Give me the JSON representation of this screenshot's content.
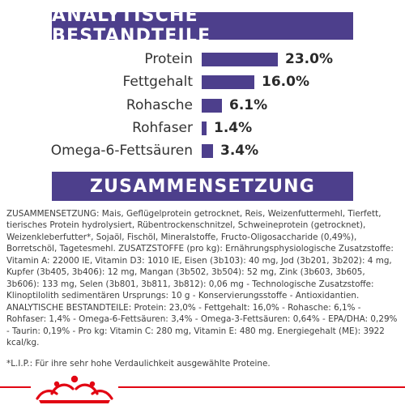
{
  "section1": {
    "title": "ANALYTISCHE BESTANDTEILE"
  },
  "nutrients": [
    {
      "label": "Protein",
      "value_text": "23.0%",
      "value": 23.0
    },
    {
      "label": "Fettgehalt",
      "value_text": "16.0%",
      "value": 16.0
    },
    {
      "label": "Rohasche",
      "value_text": "6.1%",
      "value": 6.1
    },
    {
      "label": "Rohfaser",
      "value_text": "1.4%",
      "value": 1.4
    },
    {
      "label": "Omega-6-Fettsäuren",
      "value_text": "3.4%",
      "value": 3.4
    }
  ],
  "section2": {
    "title": "ZUSAMMENSETZUNG"
  },
  "composition_text": "ZUSAMMENSETZUNG: Mais, Geflügelprotein getrocknet, Reis, Weizenfuttermehl, Tierfett, tierisches Protein hydrolysiert, Rübentrockenschnitzel, Schweineprotein (getrocknet), Weizenkleberfutter*, Sojaöl, Fischöl, Mineralstoffe, Fructo-Oligosaccharide (0,49%), Borretschöl, Tagetesmehl. ZUSATZSTOFFE (pro kg): Ernährungsphysiologische Zusatzstoffe: Vitamin A: 22000 IE, Vitamin D3: 1010 IE, Eisen (3b103): 40 mg, Jod (3b201, 3b202): 4 mg, Kupfer (3b405, 3b406): 12 mg, Mangan (3b502, 3b504): 52 mg, Zink (3b603, 3b605, 3b606): 133 mg, Selen (3b801, 3b811, 3b812): 0,06 mg - Technologische Zusatzstoffe: Klinoptilolith sedimentären Ursprungs: 10 g - Konservierungsstoffe - Antioxidantien. ANALYTISCHE BESTANDTEILE: Protein: 23,0% - Fettgehalt: 16,0% - Rohasche: 6,1% - Rohfaser: 1,4% - Omega-6-Fettsäuren: 3,4% - Omega-3-Fettsäuren: 0,64% - EPA/DHA: 0,29% - Taurin: 0,19% - Pro kg: Vitamin C: 280 mg, Vitamin E: 480 mg. Energiegehalt (ME): 3922 kcal/kg.",
  "note": "*L.I.P.: Für ihre sehr hohe Verdaulichkeit ausgewählte Proteine.",
  "colors": {
    "accent": "#4d3f8c",
    "brand_red": "#e20613"
  },
  "logo": {
    "name": "royal-canin-crown-logo"
  }
}
